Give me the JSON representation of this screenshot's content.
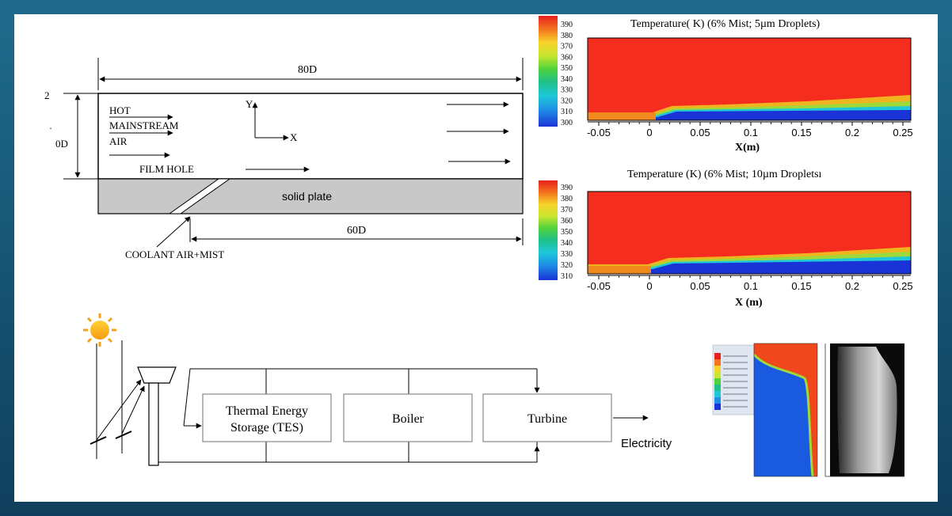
{
  "film_diagram": {
    "dim_top": "80D",
    "dim_bottom": "60D",
    "dim_left": "0D",
    "left_tick": "2",
    "hot_1": "HOT",
    "hot_2": "MAINSTREAM",
    "hot_3": "AIR",
    "axis_y": "Y",
    "axis_x": "X",
    "film_hole": "FILM HOLE",
    "plate": "solid plate",
    "coolant": "COOLANT AIR+MIST"
  },
  "contours": [
    {
      "title": "Temperature( K) (6% Mist; 5µm Droplets)",
      "xlabel": "X(m)",
      "levels": [
        "390",
        "380",
        "370",
        "360",
        "350",
        "340",
        "330",
        "320",
        "310",
        "300"
      ],
      "ticks": [
        "-0.05",
        "0",
        "0.05",
        "0.1",
        "0.15",
        "0.2",
        "0.25"
      ]
    },
    {
      "title": "Temperature (K) (6% Mist; 10µm Dropletsı",
      "xlabel": "X (m)",
      "levels": [
        "390",
        "380",
        "370",
        "360",
        "350",
        "340",
        "330",
        "320",
        "310"
      ],
      "ticks": [
        "-0.05",
        "0",
        "0.05",
        "0.1",
        "0.15",
        "0.2",
        "0.25"
      ]
    }
  ],
  "solar": {
    "tes_1": "Thermal Energy",
    "tes_2": "Storage (TES)",
    "boiler": "Boiler",
    "turbine": "Turbine",
    "electricity": "Electricity"
  },
  "colors": {
    "hot": "#f52d1f",
    "cold": "#1a33d6",
    "plate": "#c8c8c8"
  }
}
